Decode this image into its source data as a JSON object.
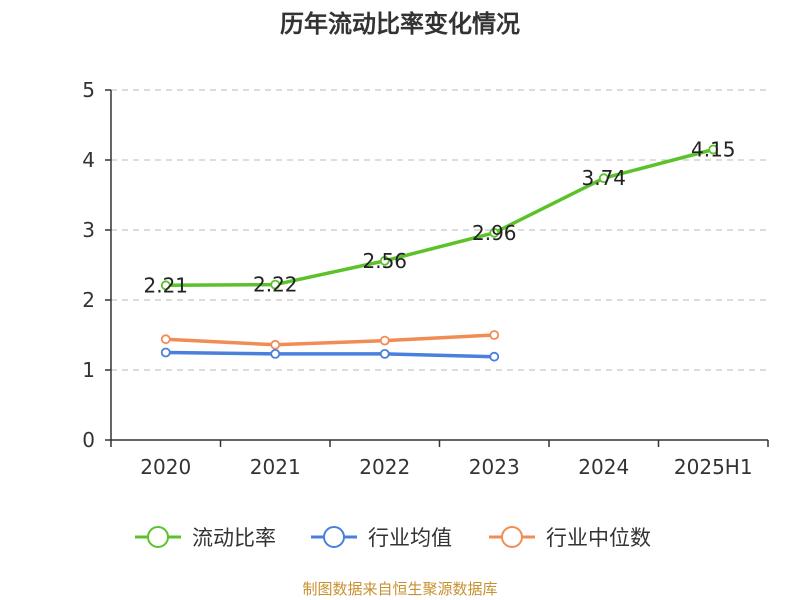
{
  "chart_data": {
    "type": "line",
    "title": "历年流动比率变化情况",
    "categories": [
      "2020",
      "2021",
      "2022",
      "2023",
      "2024",
      "2025H1"
    ],
    "ylim": [
      0,
      5
    ],
    "yticks": [
      0,
      1,
      2,
      3,
      4,
      5
    ],
    "grid": true,
    "legend_position": "bottom",
    "series": [
      {
        "name": "流动比率",
        "color": "#5cc12b",
        "values": [
          2.21,
          2.22,
          2.56,
          2.96,
          3.74,
          4.15
        ],
        "labels": [
          "2.21",
          "2.22",
          "2.56",
          "2.96",
          "3.74",
          "4.15"
        ]
      },
      {
        "name": "行业均值",
        "color": "#4a7fdc",
        "values": [
          1.25,
          1.23,
          1.23,
          1.19,
          null,
          null
        ]
      },
      {
        "name": "行业中位数",
        "color": "#f28c55",
        "values": [
          1.44,
          1.36,
          1.42,
          1.5,
          null,
          null
        ]
      }
    ],
    "source": "制图数据来自恒生聚源数据库"
  }
}
